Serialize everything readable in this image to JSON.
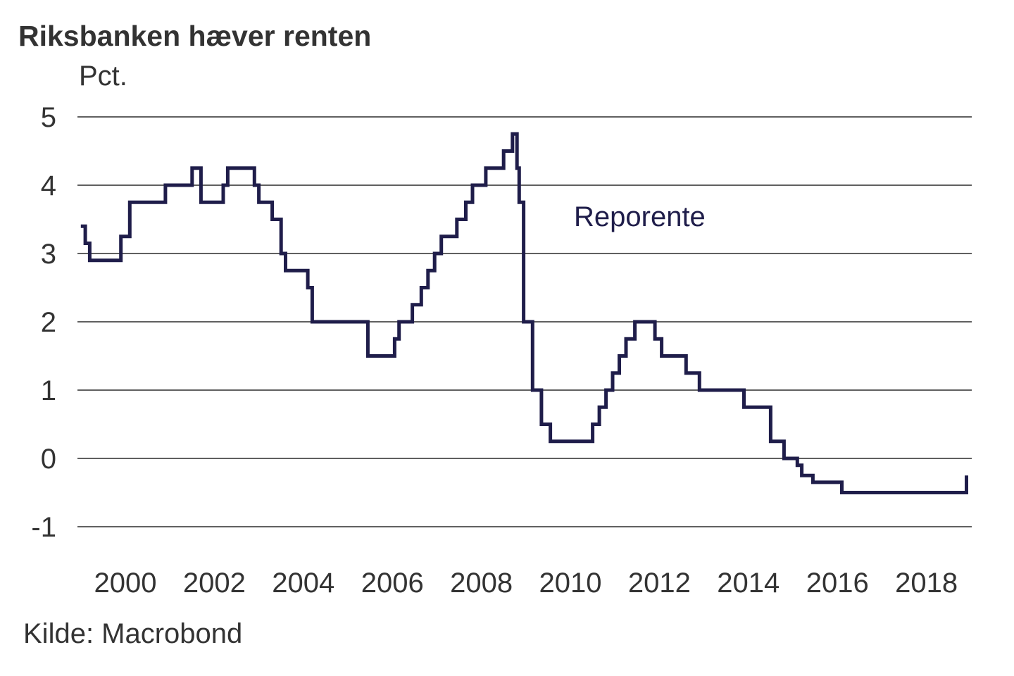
{
  "title": "Riksbanken hæver renten",
  "unit_label": "Pct.",
  "source": "Kilde: Macrobond",
  "colors": {
    "series": "#1f1d4a",
    "grid": "#000000",
    "text": "#333333"
  },
  "chart_data": {
    "type": "line",
    "title": "Riksbanken hæver renten",
    "ylabel": "Pct.",
    "xlabel": "",
    "ylim": [
      -1,
      5
    ],
    "xlim": [
      1998.7,
      2018.9
    ],
    "yticks": [
      5,
      4,
      3,
      2,
      1,
      0,
      -1
    ],
    "xticks": [
      "2000",
      "2002",
      "2004",
      "2006",
      "2008",
      "2010",
      "2012",
      "2014",
      "2016",
      "2018"
    ],
    "grid": "horizontal",
    "step": true,
    "series": [
      {
        "name": "Reporente",
        "annotation": "Reporente",
        "points": [
          [
            1999.0,
            3.4
          ],
          [
            1999.1,
            3.15
          ],
          [
            1999.2,
            2.9
          ],
          [
            1999.9,
            3.25
          ],
          [
            2000.1,
            3.75
          ],
          [
            2000.9,
            4.0
          ],
          [
            2001.5,
            4.25
          ],
          [
            2001.7,
            3.75
          ],
          [
            2002.2,
            4.0
          ],
          [
            2002.3,
            4.25
          ],
          [
            2002.9,
            4.0
          ],
          [
            2003.0,
            3.75
          ],
          [
            2003.3,
            3.5
          ],
          [
            2003.5,
            3.0
          ],
          [
            2003.6,
            2.75
          ],
          [
            2004.1,
            2.5
          ],
          [
            2004.2,
            2.0
          ],
          [
            2005.45,
            1.5
          ],
          [
            2006.05,
            1.75
          ],
          [
            2006.15,
            2.0
          ],
          [
            2006.45,
            2.25
          ],
          [
            2006.65,
            2.5
          ],
          [
            2006.8,
            2.75
          ],
          [
            2006.95,
            3.0
          ],
          [
            2007.1,
            3.25
          ],
          [
            2007.45,
            3.5
          ],
          [
            2007.65,
            3.75
          ],
          [
            2007.8,
            4.0
          ],
          [
            2008.1,
            4.25
          ],
          [
            2008.5,
            4.5
          ],
          [
            2008.7,
            4.75
          ],
          [
            2008.8,
            4.25
          ],
          [
            2008.85,
            3.75
          ],
          [
            2008.95,
            2.0
          ],
          [
            2009.15,
            1.0
          ],
          [
            2009.35,
            0.5
          ],
          [
            2009.55,
            0.25
          ],
          [
            2010.5,
            0.5
          ],
          [
            2010.65,
            0.75
          ],
          [
            2010.8,
            1.0
          ],
          [
            2010.95,
            1.25
          ],
          [
            2011.1,
            1.5
          ],
          [
            2011.25,
            1.75
          ],
          [
            2011.45,
            2.0
          ],
          [
            2011.9,
            1.75
          ],
          [
            2012.05,
            1.5
          ],
          [
            2012.6,
            1.25
          ],
          [
            2012.9,
            1.0
          ],
          [
            2013.9,
            0.75
          ],
          [
            2014.5,
            0.25
          ],
          [
            2014.8,
            0.0
          ],
          [
            2015.1,
            -0.1
          ],
          [
            2015.2,
            -0.25
          ],
          [
            2015.45,
            -0.35
          ],
          [
            2016.1,
            -0.5
          ],
          [
            2018.9,
            -0.5
          ],
          [
            2018.9,
            -0.25
          ]
        ]
      }
    ]
  }
}
